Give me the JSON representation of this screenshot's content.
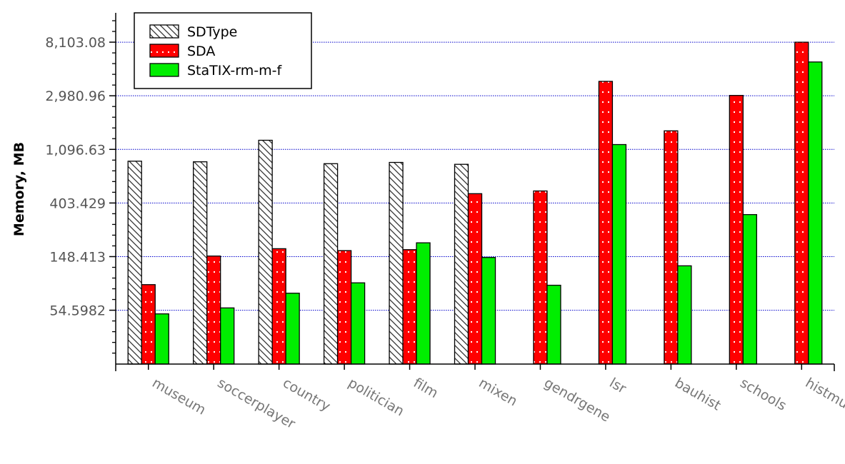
{
  "chart_data": {
    "type": "bar",
    "ylabel": "Memory, MB",
    "yscale": "log",
    "ylim": [
      20,
      14000
    ],
    "yticks": [
      54.5982,
      148.413,
      403.429,
      1096.63,
      2980.96,
      8103.08
    ],
    "ytick_labels": [
      "54.5982",
      "148.413",
      "403.429",
      "1,096.63",
      "2,980.96",
      "8,103.08"
    ],
    "grid": "horizontal dotted blue at labeled ticks",
    "legend_position": "top-left",
    "categories": [
      "museum",
      "soccerplayer",
      "country",
      "politician",
      "film",
      "mixen",
      "gendrgene",
      "lsr",
      "bauhist",
      "schools",
      "histmunic"
    ],
    "series": [
      {
        "name": "SDType",
        "color": "#ffffff",
        "pattern": "diagonal-hatch",
        "values": [
          880,
          870,
          1300,
          840,
          860,
          830,
          null,
          null,
          null,
          null,
          null
        ]
      },
      {
        "name": "SDA",
        "color": "#ff0000",
        "pattern": "white-dots",
        "values": [
          88,
          150,
          172,
          166,
          169,
          480,
          505,
          3900,
          1550,
          3000,
          8100
        ]
      },
      {
        "name": "StaTIX-rm-m-f",
        "color": "#00ee00",
        "pattern": "solid",
        "values": [
          51,
          57,
          75,
          91,
          192,
          146,
          87,
          1200,
          125,
          325,
          5600
        ]
      }
    ]
  }
}
